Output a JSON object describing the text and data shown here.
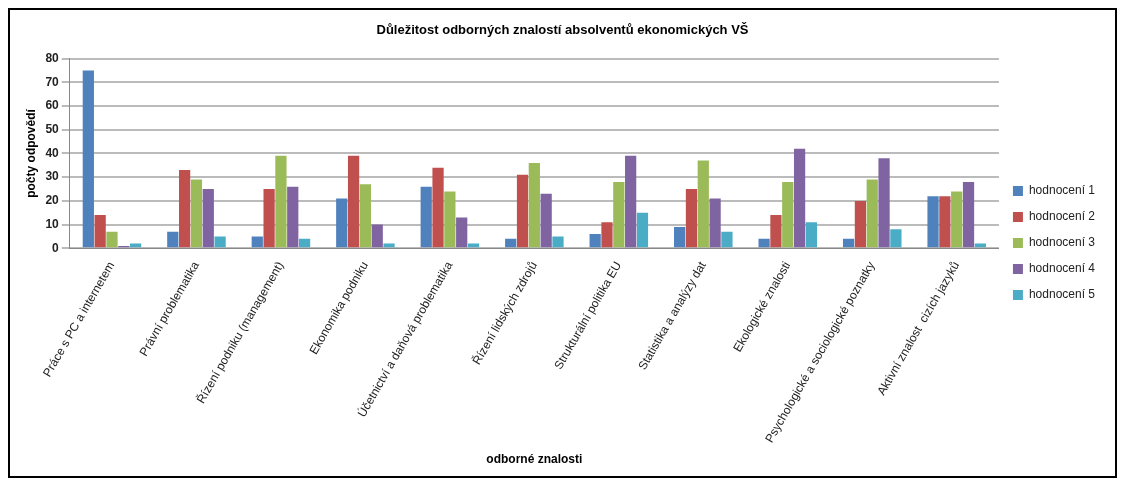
{
  "chart_data": {
    "type": "bar",
    "title": "Důležitost odborných znalostí absolventů ekonomických VŠ",
    "xlabel": "odborné znalosti",
    "ylabel": "počty odpovědí",
    "categories": [
      "Práce s PC a internetem",
      "Právní problematika",
      "Řízení podniku (management)",
      "Ekonomika podniku",
      "Účetnictví a daňová problematika",
      "Řízení lidských zdrojů",
      "Strukturální politika EU",
      "Statistika a analýzy dat",
      "Ekologické znalosti",
      "Psychologické a sociologické poznatky",
      "Aktivní znalost  cizích jazyků"
    ],
    "series": [
      {
        "name": "hodnocení 1",
        "color": "#4f81bd",
        "values": [
          75,
          7,
          5,
          21,
          26,
          4,
          6,
          9,
          4,
          4,
          22
        ]
      },
      {
        "name": "hodnocení 2",
        "color": "#c0504d",
        "values": [
          14,
          33,
          25,
          39,
          34,
          31,
          11,
          25,
          14,
          20,
          22
        ]
      },
      {
        "name": "hodnocení 3",
        "color": "#9bbb59",
        "values": [
          7,
          29,
          39,
          27,
          24,
          36,
          28,
          37,
          28,
          29,
          24
        ]
      },
      {
        "name": "hodnocení 4",
        "color": "#8064a2",
        "values": [
          1,
          25,
          26,
          10,
          13,
          23,
          39,
          21,
          42,
          38,
          28
        ]
      },
      {
        "name": "hodnocení 5",
        "color": "#4bacc6",
        "values": [
          2,
          5,
          4,
          2,
          2,
          5,
          15,
          7,
          11,
          8,
          2
        ]
      }
    ],
    "ylim": [
      0,
      80
    ],
    "yticks": [
      0,
      10,
      20,
      30,
      40,
      50,
      60,
      70,
      80
    ],
    "grid": "y",
    "legend": "right"
  }
}
